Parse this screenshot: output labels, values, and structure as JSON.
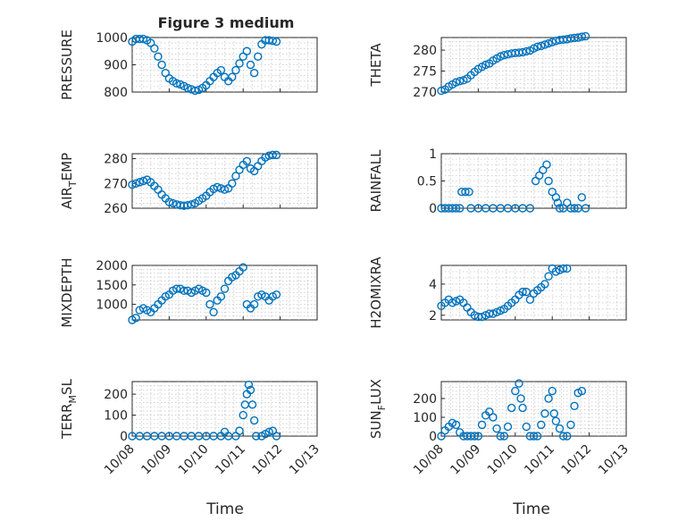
{
  "figure": {
    "title": "Figure 3 medium",
    "marker_color": "#0072BD",
    "x_tick_labels": [
      "10/08",
      "10/09",
      "10/10",
      "10/11",
      "10/12",
      "10/13"
    ],
    "xlabel": "Time"
  },
  "chart_data": [
    {
      "type": "scatter",
      "ylabel": "PRESSURE",
      "ylim": [
        800,
        1000
      ],
      "yticks": [
        800,
        900,
        1000
      ],
      "xlim": [
        0,
        5
      ],
      "grid": true,
      "points": [
        [
          0.0,
          985
        ],
        [
          0.1,
          995
        ],
        [
          0.2,
          995
        ],
        [
          0.3,
          995
        ],
        [
          0.4,
          990
        ],
        [
          0.5,
          980
        ],
        [
          0.6,
          960
        ],
        [
          0.7,
          930
        ],
        [
          0.8,
          900
        ],
        [
          0.9,
          870
        ],
        [
          1.0,
          850
        ],
        [
          1.1,
          840
        ],
        [
          1.2,
          832
        ],
        [
          1.3,
          828
        ],
        [
          1.4,
          822
        ],
        [
          1.5,
          815
        ],
        [
          1.6,
          810
        ],
        [
          1.7,
          805
        ],
        [
          1.8,
          808
        ],
        [
          1.9,
          815
        ],
        [
          2.0,
          825
        ],
        [
          2.1,
          840
        ],
        [
          2.2,
          855
        ],
        [
          2.3,
          870
        ],
        [
          2.4,
          880
        ],
        [
          2.5,
          855
        ],
        [
          2.6,
          840
        ],
        [
          2.7,
          855
        ],
        [
          2.8,
          880
        ],
        [
          2.9,
          905
        ],
        [
          3.0,
          930
        ],
        [
          3.1,
          950
        ],
        [
          3.2,
          900
        ],
        [
          3.3,
          870
        ],
        [
          3.4,
          930
        ],
        [
          3.5,
          975
        ],
        [
          3.6,
          990
        ],
        [
          3.7,
          990
        ],
        [
          3.8,
          988
        ],
        [
          3.9,
          985
        ]
      ]
    },
    {
      "type": "scatter",
      "ylabel": "THETA",
      "ylim": [
        270,
        283
      ],
      "yticks": [
        270,
        275,
        280
      ],
      "xlim": [
        0,
        5
      ],
      "grid": true,
      "points": [
        [
          0.0,
          270.3
        ],
        [
          0.1,
          270.6
        ],
        [
          0.2,
          271.3
        ],
        [
          0.3,
          271.8
        ],
        [
          0.4,
          272.3
        ],
        [
          0.5,
          272.6
        ],
        [
          0.6,
          272.8
        ],
        [
          0.7,
          273.2
        ],
        [
          0.8,
          274
        ],
        [
          0.9,
          274.8
        ],
        [
          1.0,
          275.5
        ],
        [
          1.1,
          276
        ],
        [
          1.2,
          276.5
        ],
        [
          1.3,
          276.8
        ],
        [
          1.4,
          277.5
        ],
        [
          1.5,
          278
        ],
        [
          1.6,
          278.5
        ],
        [
          1.7,
          278.8
        ],
        [
          1.8,
          279
        ],
        [
          1.9,
          279.2
        ],
        [
          2.0,
          279.3
        ],
        [
          2.1,
          279.4
        ],
        [
          2.2,
          279.5
        ],
        [
          2.3,
          279.7
        ],
        [
          2.4,
          279.9
        ],
        [
          2.5,
          280.4
        ],
        [
          2.6,
          280.8
        ],
        [
          2.7,
          281
        ],
        [
          2.8,
          281.3
        ],
        [
          2.9,
          281.6
        ],
        [
          3.0,
          281.9
        ],
        [
          3.1,
          282.2
        ],
        [
          3.2,
          282.4
        ],
        [
          3.3,
          282.5
        ],
        [
          3.4,
          282.6
        ],
        [
          3.5,
          282.8
        ],
        [
          3.6,
          282.9
        ],
        [
          3.7,
          283.0
        ],
        [
          3.8,
          283.2
        ],
        [
          3.9,
          283.3
        ]
      ]
    },
    {
      "type": "scatter",
      "ylabel": "AIR_TEMP",
      "ylim": [
        260,
        282
      ],
      "yticks": [
        260,
        270,
        280
      ],
      "xlim": [
        0,
        5
      ],
      "grid": true,
      "points": [
        [
          0.0,
          269.5
        ],
        [
          0.1,
          270
        ],
        [
          0.2,
          270.5
        ],
        [
          0.3,
          271
        ],
        [
          0.4,
          271.5
        ],
        [
          0.5,
          270.5
        ],
        [
          0.6,
          269
        ],
        [
          0.7,
          267.5
        ],
        [
          0.8,
          265.5
        ],
        [
          0.9,
          264
        ],
        [
          1.0,
          262.5
        ],
        [
          1.1,
          262
        ],
        [
          1.2,
          261.5
        ],
        [
          1.3,
          261.2
        ],
        [
          1.4,
          261
        ],
        [
          1.5,
          261.2
        ],
        [
          1.6,
          261.5
        ],
        [
          1.7,
          262
        ],
        [
          1.8,
          263
        ],
        [
          1.9,
          264
        ],
        [
          2.0,
          265
        ],
        [
          2.1,
          266.5
        ],
        [
          2.2,
          267.8
        ],
        [
          2.3,
          268.5
        ],
        [
          2.4,
          268
        ],
        [
          2.5,
          267.5
        ],
        [
          2.6,
          268
        ],
        [
          2.7,
          270
        ],
        [
          2.8,
          273
        ],
        [
          2.9,
          275.5
        ],
        [
          3.0,
          277.5
        ],
        [
          3.1,
          279
        ],
        [
          3.2,
          276
        ],
        [
          3.3,
          275
        ],
        [
          3.4,
          277
        ],
        [
          3.5,
          279
        ],
        [
          3.6,
          280.5
        ],
        [
          3.7,
          281.2
        ],
        [
          3.8,
          281.5
        ],
        [
          3.9,
          281.5
        ]
      ]
    },
    {
      "type": "scatter",
      "ylabel": "RAINFALL",
      "ylim": [
        0,
        1
      ],
      "yticks": [
        0,
        0.5,
        1
      ],
      "xlim": [
        0,
        5
      ],
      "grid": true,
      "points": [
        [
          0.0,
          0
        ],
        [
          0.1,
          0
        ],
        [
          0.2,
          0
        ],
        [
          0.3,
          0
        ],
        [
          0.4,
          0
        ],
        [
          0.5,
          0
        ],
        [
          0.55,
          0.3
        ],
        [
          0.65,
          0.3
        ],
        [
          0.75,
          0.3
        ],
        [
          0.8,
          0
        ],
        [
          1.0,
          0
        ],
        [
          1.2,
          0
        ],
        [
          1.4,
          0
        ],
        [
          1.6,
          0
        ],
        [
          1.8,
          0
        ],
        [
          2.0,
          0
        ],
        [
          2.2,
          0
        ],
        [
          2.4,
          0
        ],
        [
          2.55,
          0.5
        ],
        [
          2.65,
          0.6
        ],
        [
          2.75,
          0.7
        ],
        [
          2.85,
          0.8
        ],
        [
          2.9,
          0.5
        ],
        [
          3.0,
          0.3
        ],
        [
          3.1,
          0.2
        ],
        [
          3.15,
          0.1
        ],
        [
          3.2,
          0
        ],
        [
          3.3,
          0
        ],
        [
          3.4,
          0.1
        ],
        [
          3.5,
          0
        ],
        [
          3.6,
          0
        ],
        [
          3.7,
          0
        ],
        [
          3.8,
          0.2
        ],
        [
          3.9,
          0
        ]
      ]
    },
    {
      "type": "scatter",
      "ylabel": "MIXDEPTH",
      "ylim": [
        600,
        2000
      ],
      "yticks": [
        1000,
        1500,
        2000
      ],
      "xlim": [
        0,
        5
      ],
      "grid": true,
      "points": [
        [
          0.0,
          600
        ],
        [
          0.1,
          650
        ],
        [
          0.2,
          850
        ],
        [
          0.3,
          900
        ],
        [
          0.4,
          850
        ],
        [
          0.5,
          800
        ],
        [
          0.6,
          900
        ],
        [
          0.7,
          1000
        ],
        [
          0.8,
          1100
        ],
        [
          0.9,
          1200
        ],
        [
          1.0,
          1250
        ],
        [
          1.1,
          1350
        ],
        [
          1.2,
          1400
        ],
        [
          1.3,
          1400
        ],
        [
          1.4,
          1350
        ],
        [
          1.5,
          1350
        ],
        [
          1.6,
          1300
        ],
        [
          1.7,
          1350
        ],
        [
          1.8,
          1400
        ],
        [
          1.9,
          1350
        ],
        [
          2.0,
          1300
        ],
        [
          2.1,
          1000
        ],
        [
          2.2,
          800
        ],
        [
          2.3,
          1100
        ],
        [
          2.4,
          1200
        ],
        [
          2.5,
          1400
        ],
        [
          2.6,
          1600
        ],
        [
          2.7,
          1700
        ],
        [
          2.8,
          1750
        ],
        [
          2.9,
          1850
        ],
        [
          3.0,
          1950
        ],
        [
          3.1,
          1000
        ],
        [
          3.2,
          900
        ],
        [
          3.3,
          1000
        ],
        [
          3.4,
          1200
        ],
        [
          3.5,
          1250
        ],
        [
          3.6,
          1200
        ],
        [
          3.7,
          1100
        ],
        [
          3.8,
          1200
        ],
        [
          3.9,
          1250
        ]
      ]
    },
    {
      "type": "scatter",
      "ylabel": "H2OMIXRA",
      "ylim": [
        1.7,
        5.2
      ],
      "yticks": [
        2,
        4
      ],
      "xlim": [
        0,
        5
      ],
      "grid": true,
      "points": [
        [
          0.0,
          2.6
        ],
        [
          0.1,
          2.8
        ],
        [
          0.2,
          3.0
        ],
        [
          0.3,
          2.8
        ],
        [
          0.4,
          2.9
        ],
        [
          0.5,
          3.0
        ],
        [
          0.6,
          2.8
        ],
        [
          0.7,
          2.5
        ],
        [
          0.8,
          2.2
        ],
        [
          0.9,
          2.0
        ],
        [
          1.0,
          1.9
        ],
        [
          1.1,
          1.9
        ],
        [
          1.2,
          2.0
        ],
        [
          1.3,
          2.1
        ],
        [
          1.4,
          2.1
        ],
        [
          1.5,
          2.2
        ],
        [
          1.6,
          2.3
        ],
        [
          1.7,
          2.4
        ],
        [
          1.8,
          2.6
        ],
        [
          1.9,
          2.8
        ],
        [
          2.0,
          3.0
        ],
        [
          2.1,
          3.3
        ],
        [
          2.2,
          3.5
        ],
        [
          2.3,
          3.5
        ],
        [
          2.4,
          3.0
        ],
        [
          2.5,
          3.4
        ],
        [
          2.6,
          3.6
        ],
        [
          2.7,
          3.8
        ],
        [
          2.8,
          4.0
        ],
        [
          2.9,
          4.5
        ],
        [
          3.0,
          5.0
        ],
        [
          3.1,
          4.8
        ],
        [
          3.2,
          4.9
        ],
        [
          3.3,
          5.0
        ],
        [
          3.4,
          5.0
        ]
      ]
    },
    {
      "type": "scatter",
      "ylabel": "TERR_MSL",
      "ylim": [
        0,
        260
      ],
      "yticks": [
        0,
        100,
        200
      ],
      "xlim": [
        0,
        5
      ],
      "grid": true,
      "points": [
        [
          0.0,
          0
        ],
        [
          0.2,
          0
        ],
        [
          0.4,
          0
        ],
        [
          0.6,
          0
        ],
        [
          0.8,
          0
        ],
        [
          1.0,
          0
        ],
        [
          1.2,
          0
        ],
        [
          1.4,
          0
        ],
        [
          1.6,
          0
        ],
        [
          1.8,
          0
        ],
        [
          2.0,
          0
        ],
        [
          2.2,
          0
        ],
        [
          2.4,
          0
        ],
        [
          2.5,
          20
        ],
        [
          2.6,
          0
        ],
        [
          2.8,
          0
        ],
        [
          2.9,
          25
        ],
        [
          3.0,
          100
        ],
        [
          3.05,
          150
        ],
        [
          3.1,
          200
        ],
        [
          3.15,
          245
        ],
        [
          3.2,
          220
        ],
        [
          3.25,
          150
        ],
        [
          3.3,
          75
        ],
        [
          3.35,
          0
        ],
        [
          3.5,
          0
        ],
        [
          3.6,
          10
        ],
        [
          3.7,
          20
        ],
        [
          3.8,
          25
        ],
        [
          3.9,
          0
        ]
      ]
    },
    {
      "type": "scatter",
      "ylabel": "SUN_FLUX",
      "ylim": [
        0,
        290
      ],
      "yticks": [
        0,
        100,
        200
      ],
      "xlim": [
        0,
        5
      ],
      "grid": true,
      "points": [
        [
          0.0,
          0
        ],
        [
          0.1,
          30
        ],
        [
          0.2,
          50
        ],
        [
          0.3,
          70
        ],
        [
          0.4,
          60
        ],
        [
          0.5,
          20
        ],
        [
          0.6,
          0
        ],
        [
          0.7,
          0
        ],
        [
          0.8,
          0
        ],
        [
          0.9,
          0
        ],
        [
          1.0,
          0
        ],
        [
          1.1,
          60
        ],
        [
          1.2,
          110
        ],
        [
          1.3,
          130
        ],
        [
          1.4,
          100
        ],
        [
          1.5,
          40
        ],
        [
          1.6,
          0
        ],
        [
          1.7,
          0
        ],
        [
          1.8,
          50
        ],
        [
          1.9,
          150
        ],
        [
          2.0,
          240
        ],
        [
          2.1,
          280
        ],
        [
          2.15,
          200
        ],
        [
          2.2,
          150
        ],
        [
          2.3,
          50
        ],
        [
          2.4,
          0
        ],
        [
          2.5,
          0
        ],
        [
          2.6,
          0
        ],
        [
          2.7,
          60
        ],
        [
          2.8,
          120
        ],
        [
          2.9,
          200
        ],
        [
          3.0,
          240
        ],
        [
          3.05,
          120
        ],
        [
          3.1,
          80
        ],
        [
          3.2,
          40
        ],
        [
          3.3,
          0
        ],
        [
          3.4,
          0
        ],
        [
          3.5,
          60
        ],
        [
          3.6,
          160
        ],
        [
          3.7,
          230
        ],
        [
          3.8,
          240
        ]
      ]
    }
  ]
}
